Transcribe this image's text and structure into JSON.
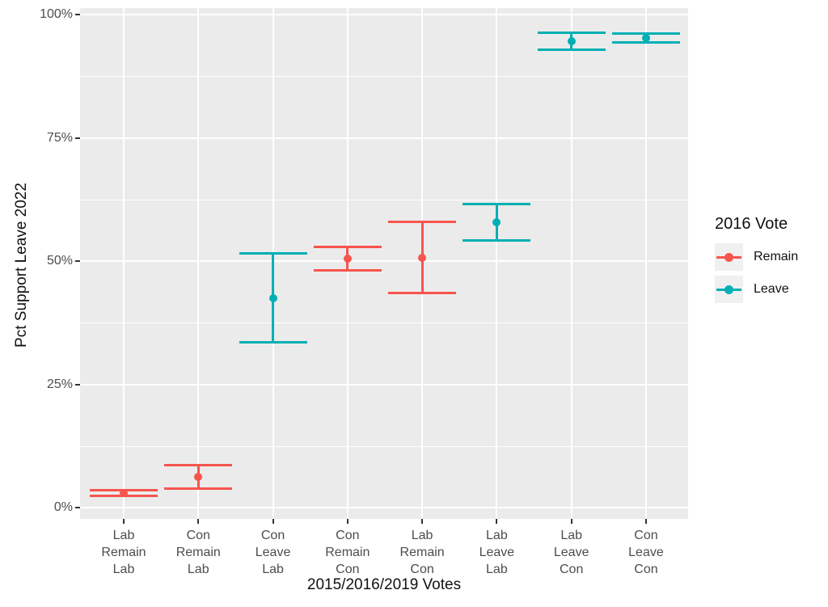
{
  "chart_data": {
    "type": "scatter",
    "subtype": "pointrange-errorbar",
    "title": "",
    "xlabel": "2015/2016/2019 Votes",
    "ylabel": "Pct Support Leave 2022",
    "ylim": [
      0,
      100
    ],
    "grid": "on",
    "panel_bg": "#EBEBEB",
    "grid_color": "#FFFFFF",
    "yticks": [
      {
        "value": 0,
        "label": "0%"
      },
      {
        "value": 25,
        "label": "25%"
      },
      {
        "value": 50,
        "label": "50%"
      },
      {
        "value": 75,
        "label": "75%"
      },
      {
        "value": 100,
        "label": "100%"
      }
    ],
    "y_minor": [
      12.5,
      37.5,
      62.5,
      87.5
    ],
    "categories": [
      {
        "lines": [
          "Lab",
          "Remain",
          "Lab"
        ]
      },
      {
        "lines": [
          "Con",
          "Remain",
          "Lab"
        ]
      },
      {
        "lines": [
          "Con",
          "Leave",
          "Lab"
        ]
      },
      {
        "lines": [
          "Con",
          "Remain",
          "Con"
        ]
      },
      {
        "lines": [
          "Lab",
          "Remain",
          "Con"
        ]
      },
      {
        "lines": [
          "Lab",
          "Leave",
          "Lab"
        ]
      },
      {
        "lines": [
          "Lab",
          "Leave",
          "Con"
        ]
      },
      {
        "lines": [
          "Con",
          "Leave",
          "Con"
        ]
      }
    ],
    "points": [
      {
        "category": "Lab Remain Lab",
        "group": "Remain",
        "value": 3.0,
        "lo": 2.4,
        "hi": 3.6
      },
      {
        "category": "Con Remain Lab",
        "group": "Remain",
        "value": 6.3,
        "lo": 3.9,
        "hi": 8.6
      },
      {
        "category": "Con Leave Lab",
        "group": "Leave",
        "value": 42.6,
        "lo": 33.6,
        "hi": 51.6
      },
      {
        "category": "Con Remain Con",
        "group": "Remain",
        "value": 50.6,
        "lo": 48.2,
        "hi": 53.0
      },
      {
        "category": "Lab Remain Con",
        "group": "Remain",
        "value": 50.8,
        "lo": 43.6,
        "hi": 58.0
      },
      {
        "category": "Lab Leave Lab",
        "group": "Leave",
        "value": 58.0,
        "lo": 54.3,
        "hi": 61.7
      },
      {
        "category": "Lab Leave Con",
        "group": "Leave",
        "value": 94.7,
        "lo": 93.0,
        "hi": 96.4
      },
      {
        "category": "Con Leave Con",
        "group": "Leave",
        "value": 95.4,
        "lo": 94.5,
        "hi": 96.2
      }
    ],
    "colors": {
      "Remain": "#F8544E",
      "Leave": "#00AFB4"
    },
    "legend": {
      "title": "2016 Vote",
      "position": "right",
      "entries": [
        {
          "label": "Remain",
          "color": "#F8544E"
        },
        {
          "label": "Leave",
          "color": "#00AFB4"
        }
      ]
    }
  }
}
